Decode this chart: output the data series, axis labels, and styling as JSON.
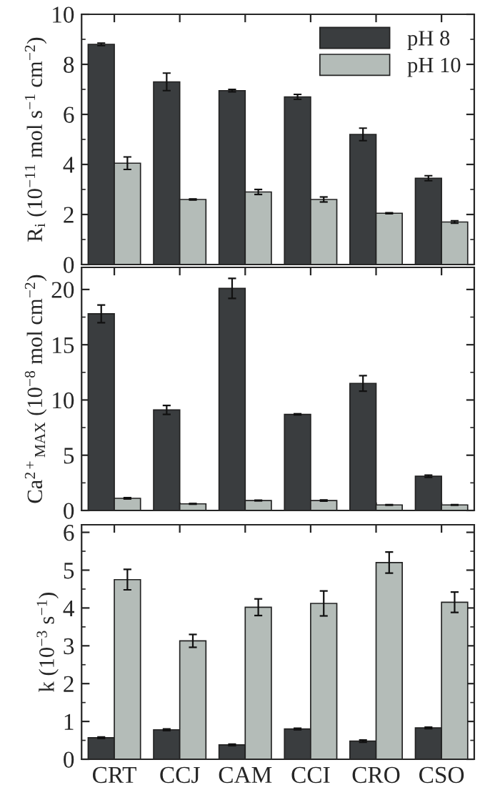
{
  "chart_data": [
    {
      "type": "bar",
      "ylabel": "R$_{i}$ (10$^{−11}$ mol s$^{−1}$ cm$^{−2}$)",
      "categories": [
        null,
        null,
        null,
        null,
        null,
        null
      ],
      "ylim": [
        0,
        10
      ],
      "yticks": [
        0,
        2,
        4,
        6,
        8,
        10
      ],
      "legend": "top right",
      "tick_labels": "y",
      "series": [
        {
          "name": "pH 8",
          "color": "#3a3d3f",
          "values": [
            8.8,
            7.3,
            6.95,
            6.7,
            5.2,
            3.45
          ],
          "errors": [
            0.05,
            0.35,
            0.05,
            0.1,
            0.25,
            0.1
          ]
        },
        {
          "name": "pH 10",
          "color": "#b4bcb8",
          "values": [
            4.05,
            2.6,
            2.9,
            2.6,
            2.05,
            1.7
          ],
          "errors": [
            0.25,
            0.02,
            0.1,
            0.1,
            0.02,
            0.05
          ]
        }
      ]
    },
    {
      "type": "bar",
      "ylabel": "Ca$^{2+}$$_{MAX}$ (10$^{−8}$ mol cm$^{−2}$)",
      "categories": [
        null,
        null,
        null,
        null,
        null,
        null
      ],
      "ylim": [
        0,
        22
      ],
      "yticks": [
        0,
        5,
        10,
        15,
        20
      ],
      "tick_labels": "y",
      "series": [
        {
          "color": "#3a3d3f",
          "values": [
            17.8,
            9.1,
            20.1,
            8.7,
            11.5,
            3.1
          ],
          "errors": [
            0.8,
            0.4,
            0.9,
            0.05,
            0.7,
            0.1
          ]
        },
        {
          "color": "#b4bcb8",
          "values": [
            1.1,
            0.6,
            0.9,
            0.9,
            0.5,
            0.5
          ],
          "errors": [
            0.05,
            0.03,
            0.03,
            0.05,
            0.03,
            0.03
          ]
        }
      ]
    },
    {
      "type": "bar",
      "ylabel": "k (10$^{−3}$ s$^{−1}$)",
      "categories": [
        "CRT",
        "CCJ",
        "CAM",
        "CCI",
        "CRO",
        "CSO"
      ],
      "ylim": [
        0,
        6.2
      ],
      "yticks": [
        0,
        1,
        2,
        3,
        4,
        5,
        6
      ],
      "series": [
        {
          "color": "#3a3d3f",
          "values": [
            0.57,
            0.78,
            0.38,
            0.8,
            0.48,
            0.83
          ],
          "errors": [
            0.02,
            0.02,
            0.02,
            0.02,
            0.03,
            0.02
          ]
        },
        {
          "color": "#b4bcb8",
          "values": [
            4.75,
            3.13,
            4.02,
            4.12,
            5.2,
            4.15
          ],
          "errors": [
            0.27,
            0.17,
            0.22,
            0.33,
            0.28,
            0.27
          ]
        }
      ]
    }
  ]
}
